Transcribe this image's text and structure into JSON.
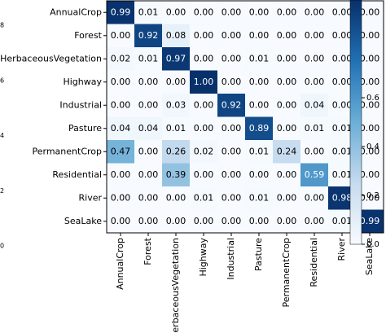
{
  "chart_data": {
    "type": "heatmap",
    "title": "",
    "xlabel": "",
    "ylabel": "",
    "rows": [
      "AnnualCrop",
      "Forest",
      "HerbaceousVegetation",
      "Highway",
      "Industrial",
      "Pasture",
      "PermanentCrop",
      "Residential",
      "River",
      "SeaLake"
    ],
    "columns": [
      "AnnualCrop",
      "Forest",
      "HerbaceousVegetation",
      "Highway",
      "Industrial",
      "Pasture",
      "PermanentCrop",
      "Residential",
      "River",
      "SeaLake"
    ],
    "values": [
      [
        "0.99",
        "0.01",
        "0.00",
        "0.00",
        "0.00",
        "0.00",
        "0.00",
        "0.00",
        "0.00",
        "0.00"
      ],
      [
        "0.00",
        "0.92",
        "0.08",
        "0.00",
        "0.00",
        "0.00",
        "0.00",
        "0.00",
        "0.00",
        "0.00"
      ],
      [
        "0.02",
        "0.01",
        "0.97",
        "0.00",
        "0.00",
        "0.01",
        "0.00",
        "0.00",
        "0.00",
        "0.00"
      ],
      [
        "0.00",
        "0.00",
        "0.00",
        "1.00",
        "0.00",
        "0.00",
        "0.00",
        "0.00",
        "0.00",
        "0.00"
      ],
      [
        "0.00",
        "0.00",
        "0.03",
        "0.00",
        "0.92",
        "0.00",
        "0.00",
        "0.04",
        "0.00",
        "0.00"
      ],
      [
        "0.04",
        "0.04",
        "0.01",
        "0.00",
        "0.00",
        "0.89",
        "0.00",
        "0.01",
        "0.01",
        "0.00"
      ],
      [
        "0.47",
        "0.00",
        "0.26",
        "0.02",
        "0.00",
        "0.01",
        "0.24",
        "0.00",
        "0.01",
        "0.00"
      ],
      [
        "0.00",
        "0.00",
        "0.39",
        "0.00",
        "0.00",
        "0.00",
        "0.00",
        "0.59",
        "0.01",
        "0.00"
      ],
      [
        "0.00",
        "0.00",
        "0.00",
        "0.01",
        "0.00",
        "0.01",
        "0.00",
        "0.00",
        "0.98",
        "0.00"
      ],
      [
        "0.00",
        "0.00",
        "0.00",
        "0.00",
        "0.00",
        "0.00",
        "0.00",
        "0.00",
        "0.01",
        "0.99"
      ]
    ],
    "value_range": [
      0,
      1
    ],
    "colormap": {
      "low": "#f7fbff",
      "mid": "#6baed6",
      "high": "#08306b"
    },
    "colorbar_ticks": [
      {
        "value": 0.0,
        "label": "0.0"
      },
      {
        "value": 0.2,
        "label": "0.2"
      },
      {
        "value": 0.4,
        "label": "0.4"
      },
      {
        "value": 0.6,
        "label": "0.6"
      }
    ],
    "left_edge_ticks": [
      {
        "value": 0.8,
        "label": "8"
      },
      {
        "value": 0.6,
        "label": "6"
      },
      {
        "value": 0.4,
        "label": "4"
      },
      {
        "value": 0.2,
        "label": "2"
      },
      {
        "value": 0.0,
        "label": "0"
      }
    ],
    "grid": false,
    "legend": "colorbar-right"
  }
}
